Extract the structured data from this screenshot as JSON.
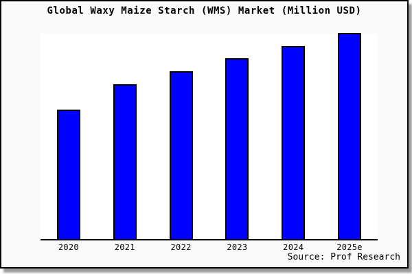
{
  "chart": {
    "title": "Global Waxy Maize Starch (WMS) Market (Million USD)",
    "source": "Source: Prof Research",
    "colors": {
      "bar_fill": "#0000ff",
      "bar_border": "#000000",
      "plot_background": "#ffffff",
      "outer_background": "#fafafa",
      "axis": "#000000",
      "frame_border": "#000000",
      "frame_shadow": "#9c9c9c"
    }
  },
  "chart_data": {
    "type": "bar",
    "title": "Global Waxy Maize Starch (WMS) Market (Million USD)",
    "categories": [
      "2020",
      "2021",
      "2022",
      "2023",
      "2024",
      "2025e"
    ],
    "values": [
      62.8,
      75.1,
      81.4,
      87.7,
      93.7,
      100
    ],
    "xlabel": "",
    "ylabel": "",
    "ylim": [
      0,
      100
    ],
    "grid": false,
    "legend": "none",
    "y_axis_labels_shown": false,
    "value_note": "no y-axis labels in image; values are relative bar heights as % of tallest (2025e) bar",
    "source_annotation": "Source: Prof Research"
  }
}
